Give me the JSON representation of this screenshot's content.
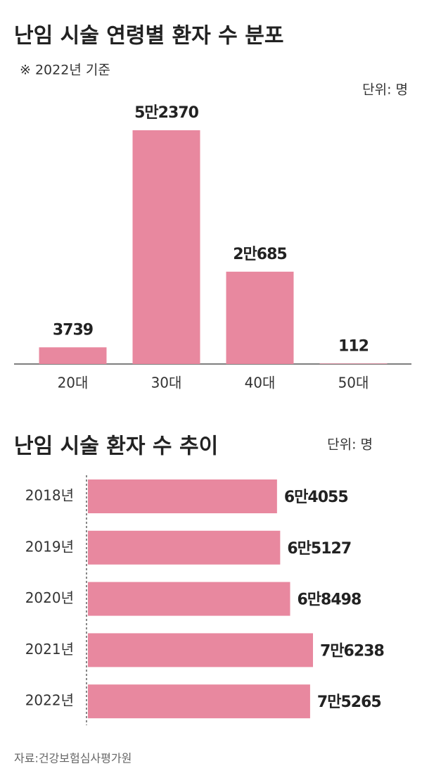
{
  "chart_data": [
    {
      "type": "bar",
      "title": "난임 시술 연령별 환자 수 분포",
      "subtitle": "※ 2022년 기준",
      "unit": "단위: 명",
      "categories": [
        "20대",
        "30대",
        "40대",
        "50대"
      ],
      "values": [
        3739,
        52370,
        20685,
        112
      ],
      "value_labels": [
        "3739",
        "5만2370",
        "2만685",
        "112"
      ],
      "color": "#e8889f"
    },
    {
      "type": "hbar",
      "title": "난임 시술 환자 수 추이",
      "unit": "단위: 명",
      "categories": [
        "2018년",
        "2019년",
        "2020년",
        "2021년",
        "2022년"
      ],
      "values": [
        64055,
        65127,
        68498,
        76238,
        75265
      ],
      "value_labels": [
        "6만4055",
        "6만5127",
        "6만8498",
        "7만6238",
        "7만5265"
      ],
      "color": "#e8889f"
    }
  ],
  "source": "자료:건강보험심사평가원"
}
